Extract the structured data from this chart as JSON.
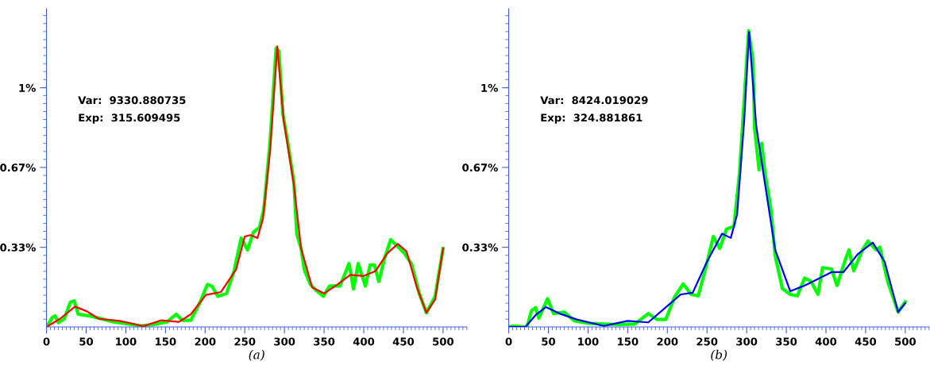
{
  "chart_data": [
    {
      "type": "line",
      "xlabel": "(a)",
      "annotations": [
        "Var:  9330.880735",
        "Exp:  315.609495"
      ],
      "xlim": [
        0,
        530
      ],
      "ylim": [
        0,
        1.33
      ],
      "xticks": [
        0,
        50,
        100,
        150,
        200,
        250,
        300,
        350,
        400,
        450,
        500
      ],
      "yticks": [
        {
          "value": 0.333,
          "label": "0.33%"
        },
        {
          "value": 0.667,
          "label": "0.67%"
        },
        {
          "value": 1,
          "label": "1%"
        }
      ],
      "grid": false,
      "legend": false,
      "series": [
        {
          "color": "#00ff00",
          "x": [
            0,
            7.5,
            11,
            15,
            22.5,
            30,
            35,
            40,
            54.5,
            69.5,
            84.5,
            103,
            118,
            133,
            152,
            163.5,
            171,
            182,
            193.5,
            203,
            208.5,
            216,
            227,
            236.5,
            245.5,
            253.5,
            261,
            268.5,
            274,
            282,
            289.5,
            293,
            298,
            304.5,
            312,
            315.5,
            321,
            325,
            332.5,
            340,
            349,
            357,
            370,
            381.5,
            387,
            393,
            402,
            408,
            413.5,
            419,
            426.5,
            434,
            441.5,
            451,
            460,
            470,
            479,
            490,
            500
          ],
          "values": [
            0,
            0.04,
            0.046,
            0.018,
            0.034,
            0.103,
            0.109,
            0.053,
            0.046,
            0.034,
            0.021,
            0.013,
            0.005,
            0.009,
            0.021,
            0.053,
            0.028,
            0.028,
            0.103,
            0.178,
            0.171,
            0.128,
            0.14,
            0.234,
            0.372,
            0.322,
            0.397,
            0.416,
            0.491,
            0.778,
            1.166,
            1.154,
            0.891,
            0.766,
            0.603,
            0.39,
            0.328,
            0.24,
            0.178,
            0.153,
            0.128,
            0.171,
            0.171,
            0.265,
            0.159,
            0.265,
            0.171,
            0.259,
            0.259,
            0.19,
            0.29,
            0.365,
            0.34,
            0.309,
            0.265,
            0.14,
            0.059,
            0.128,
            0.328
          ]
        },
        {
          "color": "#ff0000",
          "x": [
            0,
            17,
            36,
            51,
            66,
            92,
            107,
            122,
            145,
            167,
            182,
            201,
            220,
            239,
            250,
            257,
            266,
            273,
            282,
            291,
            299,
            312,
            321,
            335,
            350,
            367,
            383,
            400,
            415,
            430,
            443,
            454,
            467,
            479,
            490,
            500
          ],
          "values": [
            0,
            0.034,
            0.085,
            0.065,
            0.034,
            0.025,
            0.015,
            0.003,
            0.028,
            0.021,
            0.053,
            0.134,
            0.146,
            0.24,
            0.378,
            0.384,
            0.372,
            0.453,
            0.74,
            1.173,
            0.866,
            0.591,
            0.328,
            0.165,
            0.14,
            0.178,
            0.218,
            0.213,
            0.234,
            0.309,
            0.347,
            0.315,
            0.165,
            0.059,
            0.115,
            0.328
          ]
        }
      ]
    },
    {
      "type": "line",
      "xlabel": "(b)",
      "annotations": [
        "Var:  8424.019029",
        "Exp:  324.881861"
      ],
      "xlim": [
        0,
        530
      ],
      "ylim": [
        0,
        1.33
      ],
      "xticks": [
        0,
        50,
        100,
        150,
        200,
        250,
        300,
        350,
        400,
        450,
        500
      ],
      "yticks": [
        {
          "value": 0.333,
          "label": "0.33%"
        },
        {
          "value": 0.667,
          "label": "0.67%"
        },
        {
          "value": 1,
          "label": "1%"
        }
      ],
      "grid": false,
      "legend": false,
      "series": [
        {
          "color": "#00ff00",
          "x": [
            0,
            4.5,
            23,
            28.7,
            34,
            38,
            49,
            56.6,
            70,
            83,
            101,
            120,
            139,
            159,
            176,
            187,
            198,
            209,
            220,
            230,
            239,
            248.5,
            258,
            266,
            274.6,
            284,
            291,
            302.5,
            308,
            310,
            315.6,
            319,
            323,
            330.5,
            336,
            345,
            355,
            364,
            373,
            380.8,
            390,
            395.7,
            407,
            414,
            423.6,
            429,
            435,
            446,
            453,
            463,
            468,
            477.6,
            491,
            500
          ],
          "values": [
            0,
            0.004,
            0,
            0.068,
            0.081,
            0.037,
            0.118,
            0.056,
            0.062,
            0.025,
            0.015,
            0.012,
            0.01,
            0.012,
            0.056,
            0.031,
            0.031,
            0.124,
            0.18,
            0.136,
            0.13,
            0.248,
            0.378,
            0.328,
            0.409,
            0.421,
            0.644,
            1.239,
            1.115,
            0.83,
            0.657,
            0.768,
            0.644,
            0.496,
            0.297,
            0.161,
            0.136,
            0.13,
            0.204,
            0.192,
            0.136,
            0.248,
            0.242,
            0.173,
            0.273,
            0.322,
            0.235,
            0.322,
            0.359,
            0.322,
            0.334,
            0.192,
            0.062,
            0.105
          ]
        },
        {
          "color": "#0000ff",
          "x": [
            0,
            21,
            34,
            47,
            64,
            86,
            120,
            150,
            176,
            202,
            217,
            232,
            250,
            269,
            280,
            288,
            297,
            303,
            312,
            321,
            336,
            355,
            373,
            392,
            407,
            422,
            440,
            459,
            474,
            491,
            500
          ],
          "values": [
            0,
            0,
            0.05,
            0.083,
            0.056,
            0.031,
            0.004,
            0.025,
            0.019,
            0.093,
            0.136,
            0.143,
            0.273,
            0.39,
            0.372,
            0.471,
            0.867,
            1.233,
            0.843,
            0.644,
            0.322,
            0.149,
            0.173,
            0.204,
            0.229,
            0.229,
            0.304,
            0.353,
            0.273,
            0.062,
            0.099
          ]
        }
      ]
    }
  ]
}
